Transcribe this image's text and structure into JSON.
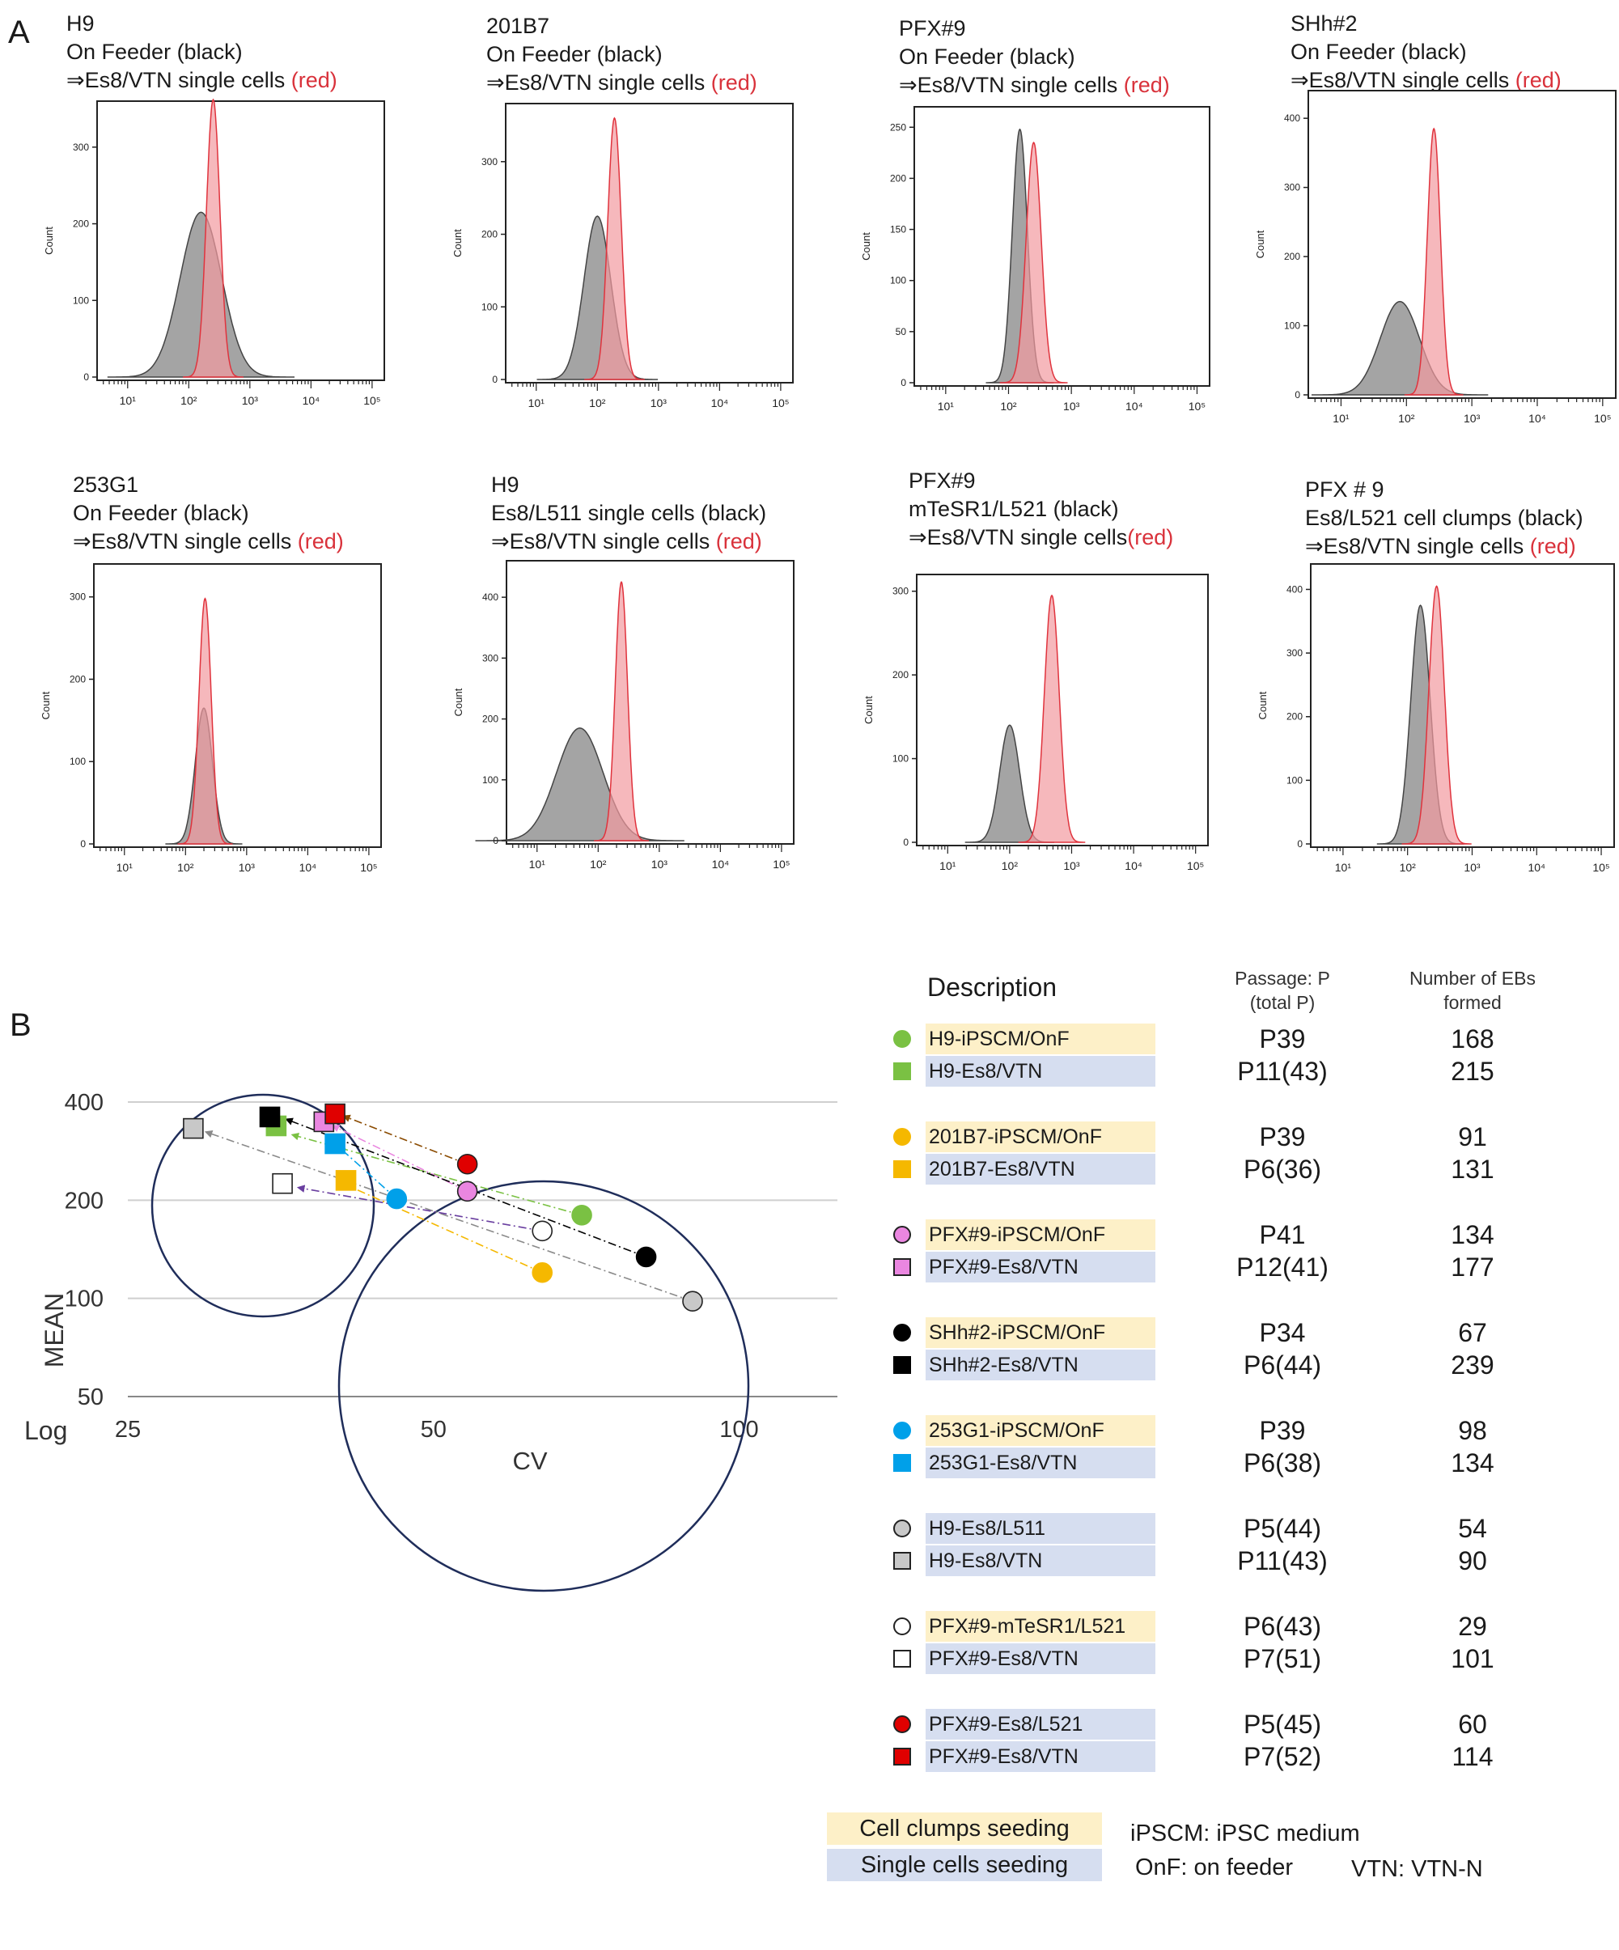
{
  "panel_a": {
    "letter": "A",
    "axis_ylabel": "Count",
    "x_ticks": [
      "10¹",
      "10²",
      "10³",
      "10⁴",
      "10⁵"
    ],
    "histograms": [
      {
        "title": [
          "H9",
          "On Feeder (black)",
          "⇒Es8/VTN single cells "
        ],
        "red_label": "(red)",
        "yticks": [
          0,
          100,
          200,
          300
        ],
        "ymax": 360,
        "black": {
          "mu": 2.2,
          "sigma": 0.34,
          "peak": 215
        },
        "red": {
          "mu": 2.4,
          "sigma": 0.11,
          "peak": 362
        }
      },
      {
        "title": [
          "201B7",
          "On Feeder (black)",
          "⇒Es8/VTN single cells "
        ],
        "red_label": "(red)",
        "yticks": [
          0,
          100,
          200,
          300
        ],
        "ymax": 380,
        "black": {
          "mu": 2.0,
          "sigma": 0.22,
          "peak": 225
        },
        "red": {
          "mu": 2.28,
          "sigma": 0.11,
          "peak": 360
        }
      },
      {
        "title": [
          "PFX#9",
          "On Feeder (black)",
          "⇒Es8/VTN single cells "
        ],
        "red_label": "(red)",
        "yticks": [
          0,
          50,
          100,
          150,
          200,
          250
        ],
        "ymax": 270,
        "black": {
          "mu": 2.18,
          "sigma": 0.12,
          "peak": 248
        },
        "red": {
          "mu": 2.4,
          "sigma": 0.12,
          "peak": 235
        }
      },
      {
        "title": [
          "SHh#2",
          "On Feeder (black)",
          "⇒Es8/VTN single cells "
        ],
        "red_label": "(red)",
        "yticks": [
          0,
          100,
          200,
          300,
          400
        ],
        "ymax": 440,
        "black": {
          "mu": 1.9,
          "sigma": 0.3,
          "peak": 135
        },
        "red": {
          "mu": 2.42,
          "sigma": 0.1,
          "peak": 385
        }
      },
      {
        "title": [
          "253G1",
          "On Feeder (black)",
          "⇒Es8/VTN single cells "
        ],
        "red_label": "(red)",
        "yticks": [
          0,
          100,
          200,
          300
        ],
        "ymax": 340,
        "black": {
          "mu": 2.3,
          "sigma": 0.14,
          "peak": 165
        },
        "red": {
          "mu": 2.32,
          "sigma": 0.1,
          "peak": 298
        }
      },
      {
        "title": [
          "H9",
          "Es8/L511 single cells (black)",
          "⇒Es8/VTN single cells "
        ],
        "red_label": "(red)",
        "yticks": [
          0,
          100,
          200,
          300,
          400
        ],
        "ymax": 460,
        "black": {
          "mu": 1.7,
          "sigma": 0.38,
          "peak": 185
        },
        "red": {
          "mu": 2.38,
          "sigma": 0.1,
          "peak": 425
        }
      },
      {
        "title": [
          "PFX#9",
          "mTeSR1/L521 (black)",
          "⇒Es8/VTN single cells"
        ],
        "red_label": "(red)",
        "yticks": [
          0,
          100,
          200,
          300
        ],
        "ymax": 320,
        "black": {
          "mu": 2.0,
          "sigma": 0.16,
          "peak": 140
        },
        "red": {
          "mu": 2.68,
          "sigma": 0.12,
          "peak": 295
        }
      },
      {
        "title": [
          "PFX # 9",
          "Es8/L521 cell clumps  (black)",
          "⇒Es8/VTN single cells "
        ],
        "red_label": "(red)",
        "yticks": [
          0,
          100,
          200,
          300,
          400
        ],
        "ymax": 440,
        "black": {
          "mu": 2.2,
          "sigma": 0.15,
          "peak": 375
        },
        "red": {
          "mu": 2.45,
          "sigma": 0.12,
          "peak": 405
        }
      }
    ]
  },
  "panel_b": {
    "letter": "B",
    "chart_data": {
      "type": "scatter",
      "xlabel": "CV",
      "ylabel": "MEAN",
      "log_label": "Log",
      "x_scale": "log",
      "y_scale": "log",
      "xlim": [
        25,
        125
      ],
      "ylim": [
        50,
        400
      ],
      "x_ticks": [
        25,
        50,
        100
      ],
      "y_ticks": [
        50,
        100,
        200,
        400
      ],
      "points": [
        {
          "name": "H9-iPSCM/OnF",
          "shape": "circle",
          "color": "#7ac143",
          "x": 70,
          "y": 180
        },
        {
          "name": "H9-Es8/VTN",
          "shape": "square",
          "color": "#7ac143",
          "x": 35,
          "y": 338
        },
        {
          "name": "201B7-iPSCM/OnF",
          "shape": "circle",
          "color": "#f5b800",
          "x": 64,
          "y": 120
        },
        {
          "name": "201B7-Es8/VTN",
          "shape": "square",
          "color": "#f5b800",
          "x": 41,
          "y": 230
        },
        {
          "name": "PFX#9-iPSCM/OnF",
          "shape": "circle",
          "color": "#ea86e0",
          "x": 54,
          "y": 213
        },
        {
          "name": "PFX#9-Es8/VTN",
          "shape": "square",
          "color": "#ea86e0",
          "x": 39,
          "y": 348
        },
        {
          "name": "SHh#2-iPSCM/OnF",
          "shape": "circle",
          "color": "#000000",
          "x": 81,
          "y": 134
        },
        {
          "name": "SHh#2-Es8/VTN",
          "shape": "square",
          "color": "#000000",
          "x": 34.5,
          "y": 360
        },
        {
          "name": "253G1-iPSCM/OnF",
          "shape": "circle",
          "color": "#00a0e9",
          "x": 46,
          "y": 202
        },
        {
          "name": "253G1-Es8/VTN",
          "shape": "square",
          "color": "#00a0e9",
          "x": 40,
          "y": 298
        },
        {
          "name": "H9-Es8/L511",
          "shape": "circle",
          "color": "#c8c8c8",
          "x": 90,
          "y": 98
        },
        {
          "name": "H9-Es8/VTN",
          "shape": "square",
          "color": "#c8c8c8",
          "x": 29,
          "y": 332
        },
        {
          "name": "PFX#9-mTeSR1/L521",
          "shape": "circle",
          "color": "#ffffff",
          "x": 64,
          "y": 161
        },
        {
          "name": "PFX#9-Es8/VTN",
          "shape": "square",
          "color": "#ffffff",
          "x": 35.5,
          "y": 225
        },
        {
          "name": "PFX#9-Es8/L521",
          "shape": "circle",
          "color": "#e00000",
          "x": 54,
          "y": 258
        },
        {
          "name": "PFX#9-Es8/VTN",
          "shape": "square",
          "color": "#e00000",
          "x": 40,
          "y": 368
        }
      ],
      "arrows": [
        {
          "from": [
            70,
            180
          ],
          "to": [
            36.5,
            316
          ],
          "color": "#7ac143"
        },
        {
          "from": [
            64,
            120
          ],
          "to": [
            41,
            223
          ],
          "color": "#f5b800"
        },
        {
          "from": [
            54,
            213
          ],
          "to": [
            40,
            336
          ],
          "color": "#ea86e0"
        },
        {
          "from": [
            81,
            134
          ],
          "to": [
            36,
            352
          ],
          "color": "#000000"
        },
        {
          "from": [
            46,
            202
          ],
          "to": [
            40.5,
            288
          ],
          "color": "#00a0e9"
        },
        {
          "from": [
            90,
            98
          ],
          "to": [
            30,
            322
          ],
          "color": "#8a8a8a"
        },
        {
          "from": [
            64,
            161
          ],
          "to": [
            37,
            218
          ],
          "color": "#6a3fa0"
        },
        {
          "from": [
            54,
            258
          ],
          "to": [
            41,
            360
          ],
          "color": "#8a4b00"
        }
      ]
    }
  },
  "legend": {
    "description_header": "Description",
    "passage_header": [
      "Passage: P",
      "(total P)"
    ],
    "ebs_header": [
      "Number of EBs",
      "formed"
    ],
    "groups": [
      {
        "rows": [
          {
            "symbol": "circle",
            "color": "#7ac143",
            "label": "H9-iPSCM/OnF",
            "seeding": "clumps",
            "passage": "P39",
            "ebs": "168"
          },
          {
            "symbol": "square",
            "color": "#7ac143",
            "label": "H9-Es8/VTN",
            "seeding": "single",
            "passage": "P11(43)",
            "ebs": "215"
          }
        ]
      },
      {
        "rows": [
          {
            "symbol": "circle",
            "color": "#f5b800",
            "label": "201B7-iPSCM/OnF",
            "seeding": "clumps",
            "passage": "P39",
            "ebs": "91"
          },
          {
            "symbol": "square",
            "color": "#f5b800",
            "label": "201B7-Es8/VTN",
            "seeding": "single",
            "passage": "P6(36)",
            "ebs": "131"
          }
        ]
      },
      {
        "rows": [
          {
            "symbol": "circle",
            "color": "#ea86e0",
            "label": "PFX#9-iPSCM/OnF",
            "seeding": "clumps",
            "passage": "P41",
            "ebs": "134"
          },
          {
            "symbol": "square",
            "color": "#ea86e0",
            "label": "PFX#9-Es8/VTN",
            "seeding": "single",
            "passage": "P12(41)",
            "ebs": "177"
          }
        ]
      },
      {
        "rows": [
          {
            "symbol": "circle",
            "color": "#000000",
            "label": "SHh#2-iPSCM/OnF",
            "seeding": "clumps",
            "passage": "P34",
            "ebs": "67"
          },
          {
            "symbol": "square",
            "color": "#000000",
            "label": "SHh#2-Es8/VTN",
            "seeding": "single",
            "passage": "P6(44)",
            "ebs": "239"
          }
        ]
      },
      {
        "rows": [
          {
            "symbol": "circle",
            "color": "#00a0e9",
            "label": "253G1-iPSCM/OnF",
            "seeding": "clumps",
            "passage": "P39",
            "ebs": "98"
          },
          {
            "symbol": "square",
            "color": "#00a0e9",
            "label": "253G1-Es8/VTN",
            "seeding": "single",
            "passage": "P6(38)",
            "ebs": "134"
          }
        ]
      },
      {
        "rows": [
          {
            "symbol": "circle",
            "color": "#c8c8c8",
            "label": "H9-Es8/L511",
            "seeding": "single",
            "passage": "P5(44)",
            "ebs": "54"
          },
          {
            "symbol": "square",
            "color": "#c8c8c8",
            "label": "H9-Es8/VTN",
            "seeding": "single",
            "passage": "P11(43)",
            "ebs": "90"
          }
        ]
      },
      {
        "rows": [
          {
            "symbol": "circle",
            "color": "#ffffff",
            "label": "PFX#9-mTeSR1/L521",
            "seeding": "clumps",
            "passage": "P6(43)",
            "ebs": "29"
          },
          {
            "symbol": "square",
            "color": "#ffffff",
            "label": "PFX#9-Es8/VTN",
            "seeding": "single",
            "passage": "P7(51)",
            "ebs": "101"
          }
        ]
      },
      {
        "rows": [
          {
            "symbol": "circle",
            "color": "#e00000",
            "label": "PFX#9-Es8/L521",
            "seeding": "single",
            "passage": "P5(45)",
            "ebs": "60"
          },
          {
            "symbol": "square",
            "color": "#e00000",
            "label": "PFX#9-Es8/VTN",
            "seeding": "single",
            "passage": "P7(52)",
            "ebs": "114"
          }
        ]
      }
    ],
    "colors": {
      "clumps": "#fdf0c8",
      "single": "#d6def0"
    },
    "footer": {
      "clumps": "Cell clumps  seeding",
      "single": "Single cells seeding",
      "iPSCM": "iPSCM: iPSC medium",
      "onf": "OnF: on feeder",
      "vtn": "VTN: VTN-N"
    }
  }
}
